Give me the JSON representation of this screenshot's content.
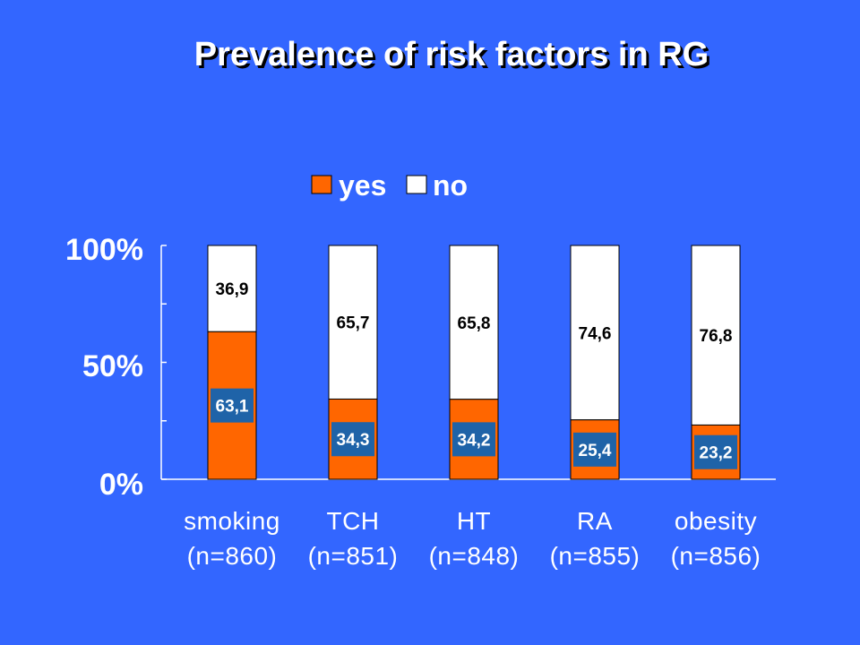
{
  "title": "Prevalence of risk factors in RG",
  "colors": {
    "background": "#3366ff",
    "yes": "#ff6600",
    "no": "#ffffff",
    "label_box": "#1f63a8"
  },
  "chart_data": {
    "type": "bar",
    "stacked": true,
    "percent": true,
    "title": "Prevalence of risk factors in RG",
    "categories": [
      "smoking",
      "TCH",
      "HT",
      "RA",
      "obesity"
    ],
    "category_n": [
      "(n=860)",
      "(n=851)",
      "(n=848)",
      "(n=855)",
      "(n=856)"
    ],
    "series": [
      {
        "name": "yes",
        "values": [
          63.1,
          34.3,
          34.2,
          25.4,
          23.2
        ],
        "labels": [
          "63,1",
          "34,3",
          "34,2",
          "25,4",
          "23,2"
        ]
      },
      {
        "name": "no",
        "values": [
          36.9,
          65.7,
          65.8,
          74.6,
          76.8
        ],
        "labels": [
          "36,9",
          "65,7",
          "65,8",
          "74,6",
          "76,8"
        ]
      }
    ],
    "yticks": [
      "100%",
      "50%",
      "0%"
    ],
    "ylim": [
      0,
      100
    ],
    "legend_position": "top",
    "grid": false
  }
}
